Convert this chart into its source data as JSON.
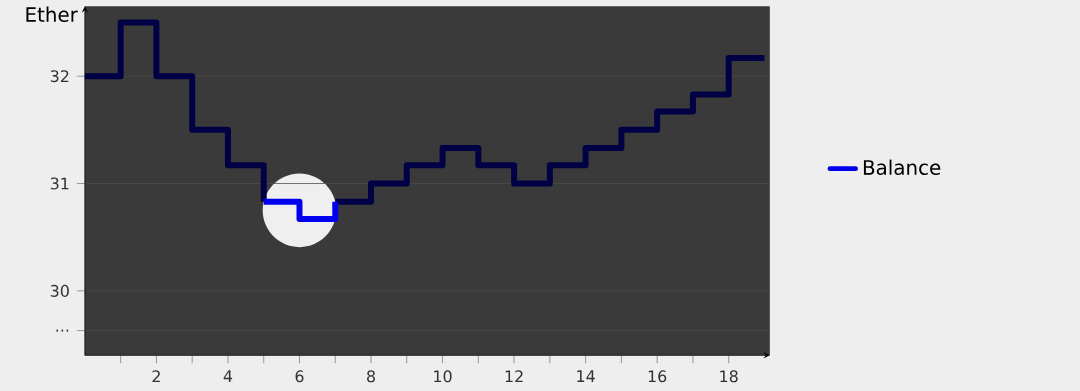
{
  "chart_data": {
    "type": "step",
    "ylabel": "Ether",
    "x": [
      0,
      1,
      2,
      3,
      4,
      5,
      6,
      7,
      8,
      9,
      10,
      11,
      12,
      13,
      14,
      15,
      16,
      17,
      18,
      19
    ],
    "series": [
      {
        "name": "Balance",
        "color": "#0000ee",
        "values": [
          null,
          null,
          null,
          null,
          null,
          30.83,
          30.67,
          30.83,
          null,
          null,
          null,
          null,
          null,
          null,
          null,
          null,
          null,
          null,
          null,
          null
        ]
      },
      {
        "color": "#000044",
        "values": [
          32,
          32.5,
          32,
          31.5,
          31.17,
          30.83,
          null,
          30.83,
          31,
          31.17,
          31.33,
          31.17,
          31,
          31.17,
          31.33,
          31.5,
          31.67,
          31.83,
          32.17,
          32.17
        ]
      }
    ],
    "xlim": [
      0,
      19.15
    ],
    "ylim": [
      29.4,
      32.65
    ],
    "xticks": [
      {
        "value": 1,
        "label": null
      },
      2,
      {
        "value": 3,
        "label": null
      },
      4,
      {
        "value": 5,
        "label": null
      },
      6,
      {
        "value": 7,
        "label": null
      },
      8,
      {
        "value": 9,
        "label": null
      },
      10,
      {
        "value": 11,
        "label": null
      },
      12,
      {
        "value": 13,
        "label": null
      },
      14,
      {
        "value": 15,
        "label": null
      },
      16,
      {
        "value": 17,
        "label": null
      },
      18
    ],
    "yticks": [
      {
        "value": 29.63,
        "label": "..."
      },
      30,
      31,
      32
    ],
    "grid": "y",
    "legend": "right",
    "line_style": "solid",
    "marker": "none"
  }
}
